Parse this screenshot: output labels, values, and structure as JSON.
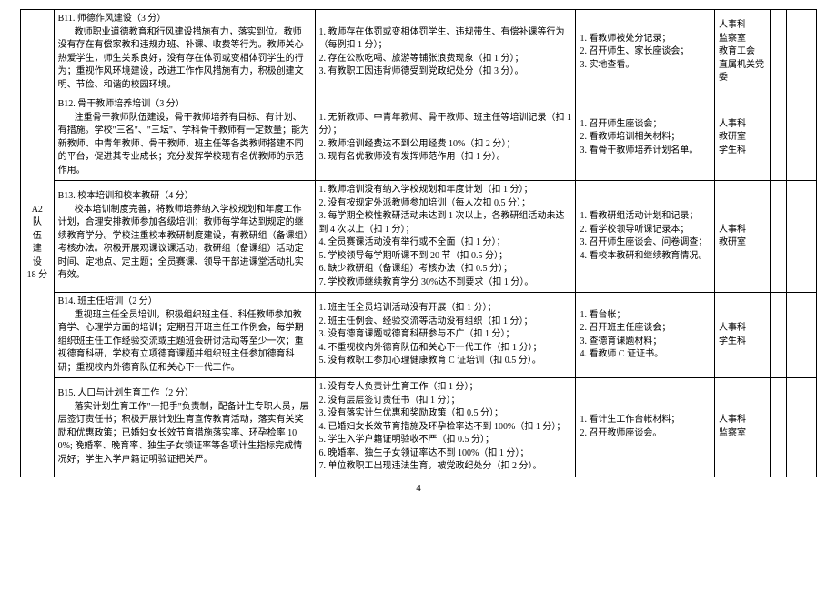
{
  "page_number": "4",
  "category": {
    "code": "A2",
    "name_line1": "队",
    "name_line2": "伍",
    "name_line3": "建",
    "name_line4": "设",
    "score": "18 分"
  },
  "rows": [
    {
      "item_title": "B11. 师德作风建设（3 分）",
      "item_body": "教师职业道德教育和行风建设措施有力，落实到位。教师没有存在有偿家教和违规办班、补课、收费等行为。教师关心热爱学生，师生关系良好，没有存在体罚或变相体罚学生的行为；重视作风环境建设，改进工作作风措施有力，积极创建文明、节俭、和谐的校园环境。",
      "deduct": "1. 教师存在体罚或变相体罚学生、违规带生、有偿补课等行为（每例扣 1 分）；\n2. 存在公款吃喝、旅游等铺张浪费现象（扣 1 分）；\n3. 有教职工因违背师德受到党政纪处分（扣 3 分）。",
      "method": "1. 看教师被处分记录；\n2. 召开师生、家长座谈会；\n3. 实地查看。",
      "dept": "人事科\n监察室\n教育工会\n直属机关党委"
    },
    {
      "item_title": "B12. 骨干教师培养培训（3 分）",
      "item_body": "注重骨干教师队伍建设，骨干教师培养有目标、有计划、有措施。学校\"三名\"、\"三坛\"、学科骨干教师有一定数量；能为新教师、中青年教师、骨干教师、班主任等各类教师搭建不同的平台，促进其专业成长；充分发挥学校现有名优教师的示范作用。",
      "deduct": "1. 无新教师、中青年教师、骨干教师、班主任等培训记录（扣 1 分）；\n2. 教师培训经费达不到公用经费 10%（扣 2 分）；\n3. 现有名优教师没有发挥师范作用（扣 1 分）。",
      "method": "1. 召开师生座谈会；\n2. 看教师培训相关材料；\n3. 看骨干教师培养计划名单。",
      "dept": "人事科\n教研室\n学生科"
    },
    {
      "item_title": "B13. 校本培训和校本教研（4 分）",
      "item_body": "校本培训制度完善，将教师培养纳入学校规划和年度工作计划，合理安排教师参加各级培训；教师每学年达到规定的继续教育学分。学校注重校本教研制度建设，有教研组（备课组）考核办法。积极开展观课议课活动，教研组（备课组）活动定时间、定地点、定主题；全员赛课、领导干部进课堂活动扎实有效。",
      "deduct": "1. 教师培训没有纳入学校规划和年度计划（扣 1 分）；\n2. 没有按规定外派教师参加培训（每人次扣 0.5 分）；\n3. 每学期全校性教研活动未达到 1 次以上，各教研组活动未达到 4 次以上（扣 1 分）；\n4. 全员赛课活动没有举行或不全面（扣 1 分）；\n5. 学校领导每学期听课不到 20 节（扣 0.5 分）；\n6. 缺少教研组（备课组）考核办法（扣 0.5 分）；\n7. 学校教师继续教育学分 30%达不到要求（扣 1 分）。",
      "method": "1. 看教研组活动计划和记录；\n2. 看学校领导听课记录本；\n3. 召开师生座谈会、问卷调查；\n4. 看校本教研和继续教育情况。",
      "dept": "人事科\n教研室"
    },
    {
      "item_title": "B14. 班主任培训（2 分）",
      "item_body": "重视班主任全员培训，积极组织班主任、科任教师参加教育学、心理学方面的培训；定期召开班主任工作例会，每学期组织班主任工作经验交流或主题班会研讨活动等至少一次；重视德育科研，学校有立项德育课题并组织班主任参加德育科研；重视校内外德育队伍和关心下一代工作。",
      "deduct": "1. 班主任全员培训活动没有开展（扣 1 分）；\n2. 班主任例会、经验交流等活动没有组织（扣 1 分）；\n3. 没有德育课题或德育科研参与不广（扣 1 分）；\n4. 不重视校内外德育队伍和关心下一代工作（扣 1 分）；\n5. 没有教职工参加心理健康教育 C 证培训（扣 0.5 分）。",
      "method": "1. 看台帐；\n2. 召开班主任座谈会；\n3. 查德育课题材料；\n4. 看教师 C 证证书。",
      "dept": "人事科\n学生科"
    },
    {
      "item_title": "B15. 人口与计划生育工作（2 分）",
      "item_body": "落实计划生育工作\"一把手\"负责制，配备计生专职人员，层层签订责任书；积极开展计划生育宣传教育活动，落实有关奖励和优惠政策；已婚妇女长效节育措施落实率、环孕检率 100%; 晚婚率、晚育率、独生子女领证率等各项计生指标完成情况好；学生入学户籍证明验证把关严。",
      "deduct": "1. 没有专人负责计生育工作（扣 1 分）；\n2. 没有层层签订责任书（扣 1 分）；\n3. 没有落实计生优惠和奖励政策（扣 0.5 分）；\n4. 已婚妇女长效节育措施及环孕检率达不到 100%（扣 1 分）；\n5. 学生入学户籍证明验收不严（扣 0.5 分）；\n6. 晚婚率、独生子女领证率达不到 100%（扣 1 分）；\n7. 单位教职工出现违法生育，被党政纪处分（扣 2 分）。",
      "method": "1. 看计生工作台帐材料；\n2. 召开教师座谈会。",
      "dept": "人事科\n监察室"
    }
  ]
}
